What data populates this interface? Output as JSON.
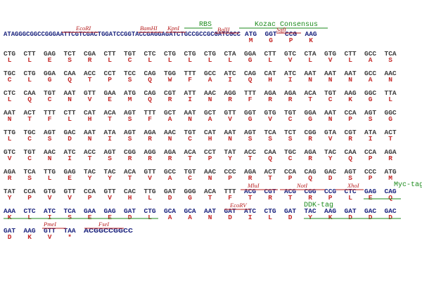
{
  "annotations": [
    {
      "label": "EcoRI"
    },
    {
      "label": "BamHI"
    },
    {
      "label": "KpnI"
    },
    {
      "label": "RBS"
    },
    {
      "label": "BglII"
    },
    {
      "label": "Kozac Consensus"
    },
    {
      "label": "SgfI"
    },
    {
      "label": "MluI"
    },
    {
      "label": "NotI"
    },
    {
      "label": "XhoI"
    },
    {
      "label": "Myc-tag"
    },
    {
      "label": "EcoRV"
    },
    {
      "label": "DDK-tag"
    },
    {
      "label": "PmeI"
    },
    {
      "label": "FseI"
    }
  ],
  "rows": [
    {
      "prefix": "ATAGGGCGGCCGGGAATTCGTCGACTGGATCCGGTACCGAGGAGATCTGCCGCCGCGATCGCC",
      "codons": [
        "ATG",
        "GGT",
        "CCG",
        "AAG"
      ],
      "aa": [
        "M",
        "G",
        "P",
        "K"
      ]
    },
    {
      "codons": [
        "CTG",
        "CTT",
        "GAG",
        "TCT",
        "CGA",
        "CTT",
        "TGT",
        "CTC",
        "CTG",
        "CTG",
        "CTG",
        "CTA",
        "GGA",
        "CTT",
        "GTC",
        "CTA",
        "GTG",
        "CTT",
        "GCC",
        "TCA"
      ],
      "aa": [
        "L",
        "L",
        "E",
        "S",
        "R",
        "L",
        "C",
        "L",
        "L",
        "L",
        "L",
        "L",
        "G",
        "L",
        "V",
        "L",
        "V",
        "L",
        "A",
        "S"
      ]
    },
    {
      "codons": [
        "TGC",
        "CTG",
        "GGA",
        "CAA",
        "ACC",
        "CCT",
        "TCC",
        "CAG",
        "TGG",
        "TTT",
        "GCC",
        "ATC",
        "CAG",
        "CAT",
        "ATC",
        "AAT",
        "AAT",
        "AAT",
        "GCC",
        "AAC"
      ],
      "aa": [
        "C",
        "L",
        "G",
        "Q",
        "T",
        "P",
        "S",
        "Q",
        "W",
        "F",
        "A",
        "I",
        "Q",
        "H",
        "I",
        "N",
        "N",
        "N",
        "A",
        "N"
      ]
    },
    {
      "codons": [
        "CTC",
        "CAA",
        "TGT",
        "AAT",
        "GTT",
        "GAA",
        "ATG",
        "CAG",
        "CGT",
        "ATT",
        "AAC",
        "AGG",
        "TTT",
        "AGA",
        "AGA",
        "ACA",
        "TGT",
        "AAG",
        "GGC",
        "TTA"
      ],
      "aa": [
        "L",
        "Q",
        "C",
        "N",
        "V",
        "E",
        "M",
        "Q",
        "R",
        "I",
        "N",
        "R",
        "F",
        "R",
        "R",
        "T",
        "C",
        "K",
        "G",
        "L"
      ]
    },
    {
      "codons": [
        "AAT",
        "ACT",
        "TTT",
        "CTT",
        "CAT",
        "ACA",
        "AGT",
        "TTT",
        "GCT",
        "AAT",
        "GCT",
        "GTT",
        "GGT",
        "GTG",
        "TGT",
        "GGA",
        "AAT",
        "CCA",
        "AGT",
        "GGC"
      ],
      "aa": [
        "N",
        "T",
        "F",
        "L",
        "H",
        "T",
        "S",
        "F",
        "A",
        "N",
        "A",
        "V",
        "G",
        "V",
        "C",
        "G",
        "N",
        "P",
        "S",
        "G"
      ]
    },
    {
      "codons": [
        "TTG",
        "TGC",
        "AGT",
        "GAC",
        "AAT",
        "ATA",
        "AGT",
        "AGA",
        "AAC",
        "TGT",
        "CAT",
        "AAT",
        "AGT",
        "TCA",
        "TCT",
        "CGG",
        "GTA",
        "CGT",
        "ATA",
        "ACT"
      ],
      "aa": [
        "L",
        "C",
        "S",
        "D",
        "N",
        "I",
        "S",
        "R",
        "N",
        "C",
        "H",
        "N",
        "S",
        "S",
        "S",
        "R",
        "V",
        "R",
        "I",
        "T"
      ]
    },
    {
      "codons": [
        "GTC",
        "TGT",
        "AAC",
        "ATC",
        "ACC",
        "AGT",
        "CGG",
        "AGG",
        "AGA",
        "ACA",
        "CCT",
        "TAT",
        "ACC",
        "CAA",
        "TGC",
        "AGA",
        "TAC",
        "CAA",
        "CCA",
        "AGA"
      ],
      "aa": [
        "V",
        "C",
        "N",
        "I",
        "T",
        "S",
        "R",
        "R",
        "R",
        "T",
        "P",
        "Y",
        "T",
        "Q",
        "C",
        "R",
        "Y",
        "Q",
        "P",
        "R"
      ]
    },
    {
      "codons": [
        "AGA",
        "TCA",
        "TTG",
        "GAG",
        "TAC",
        "TAC",
        "ACA",
        "GTT",
        "GCC",
        "TGT",
        "AAC",
        "CCC",
        "AGA",
        "ACT",
        "CCA",
        "CAG",
        "GAC",
        "AGT",
        "CCC",
        "ATG"
      ],
      "aa": [
        "R",
        "S",
        "L",
        "E",
        "Y",
        "Y",
        "T",
        "V",
        "A",
        "C",
        "N",
        "P",
        "R",
        "T",
        "P",
        "Q",
        "D",
        "S",
        "P",
        "M"
      ]
    },
    {
      "codons": [
        "TAT",
        "CCA",
        "GTG",
        "GTT",
        "CCA",
        "GTT",
        "CAC",
        "TTG",
        "GAT",
        "GGG",
        "ACA",
        "TTT",
        "ACG",
        "CGT",
        "ACG",
        "CGG",
        "CCG",
        "CTC",
        "GAG",
        "CAG"
      ],
      "aa": [
        "Y",
        "P",
        "V",
        "V",
        "P",
        "V",
        "H",
        "L",
        "D",
        "G",
        "T",
        "F",
        "T",
        "R",
        "T",
        "R",
        "P",
        "L",
        "E",
        "Q"
      ]
    },
    {
      "codons": [
        "AAA",
        "CTC",
        "ATC",
        "TCA",
        "GAA",
        "GAG",
        "GAT",
        "CTG",
        "GCA",
        "GCA",
        "AAT",
        "GAT",
        "ATC",
        "CTG",
        "GAT",
        "TAC",
        "AAG",
        "GAT",
        "GAC",
        "GAC"
      ],
      "aa": [
        "K",
        "L",
        "I",
        "S",
        "E",
        "E",
        "D",
        "L",
        "A",
        "A",
        "N",
        "D",
        "I",
        "L",
        "D",
        "Y",
        "K",
        "D",
        "D",
        "D"
      ]
    },
    {
      "codons": [
        "GAT",
        "AAG",
        "GTT",
        "TAA"
      ],
      "aa": [
        "D",
        "K",
        "V",
        "*"
      ],
      "suffix": "ACGGCCGGCC"
    }
  ]
}
